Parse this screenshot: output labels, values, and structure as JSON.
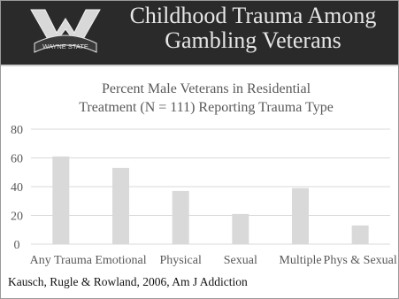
{
  "slide": {
    "title_lines": [
      "Childhood Trauma Among",
      "Gambling Veterans"
    ],
    "logo_text": "WAYNE STATE",
    "citation": "Kausch, Rugle & Rowland, 2006, Am J Addiction"
  },
  "colors": {
    "header_bg": "#2a2a2a",
    "title_text": "#e6e6e6",
    "bar_fill": "#d9d9d9",
    "gridline": "#d9d9d9",
    "axis_text": "#595959"
  },
  "chart_data": {
    "type": "bar",
    "title": "Percent Male Veterans in Residential Treatment (N = 111) Reporting Trauma Type",
    "title_lines": [
      "Percent Male Veterans in Residential",
      "Treatment (N = 111) Reporting Trauma Type"
    ],
    "categories": [
      "Any Trauma",
      "Emotional",
      "Physical",
      "Sexual",
      "Multiple",
      "Phys & Sexual"
    ],
    "values": [
      61,
      53,
      37,
      21,
      39,
      13
    ],
    "yticks": [
      0,
      20,
      40,
      60,
      80
    ],
    "ylim": [
      0,
      80
    ],
    "xlabel": "",
    "ylabel": "",
    "grid": true,
    "legend": "none"
  }
}
